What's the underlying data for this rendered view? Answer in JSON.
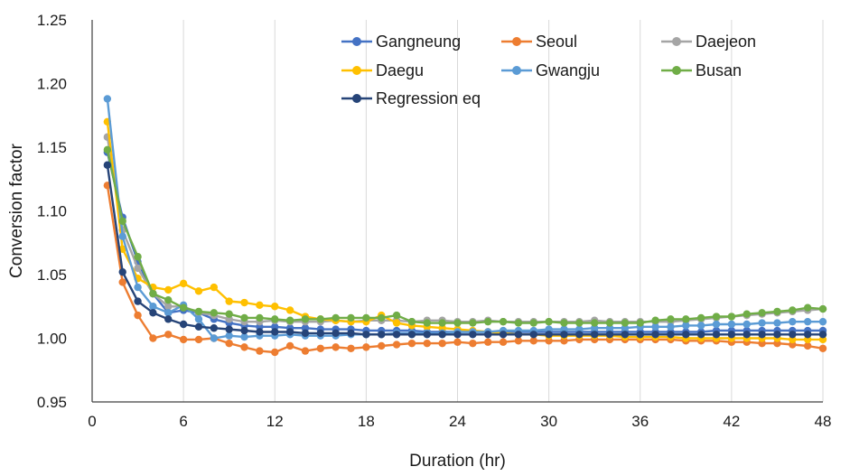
{
  "chart_data": {
    "type": "line",
    "xlabel": "Duration (hr)",
    "ylabel": "Conversion factor",
    "xlim": [
      0,
      48
    ],
    "ylim": [
      0.95,
      1.25
    ],
    "xticks": [
      "0",
      "6",
      "12",
      "18",
      "24",
      "30",
      "36",
      "42",
      "48"
    ],
    "yticks": [
      "0.95",
      "1.00",
      "1.05",
      "1.10",
      "1.15",
      "1.20",
      "1.25"
    ],
    "grid": "vertical",
    "legend_position": "top-right",
    "x": [
      1,
      2,
      3,
      4,
      5,
      6,
      7,
      8,
      9,
      10,
      11,
      12,
      13,
      14,
      15,
      16,
      17,
      18,
      19,
      20,
      21,
      22,
      23,
      24,
      25,
      26,
      27,
      28,
      29,
      30,
      31,
      32,
      33,
      34,
      35,
      36,
      37,
      38,
      39,
      40,
      41,
      42,
      43,
      44,
      45,
      46,
      47,
      48
    ],
    "series": [
      {
        "name": "Gangneung",
        "color": "#4472c4",
        "values": [
          1.146,
          1.095,
          1.06,
          1.035,
          1.02,
          1.022,
          1.02,
          1.015,
          1.012,
          1.01,
          1.009,
          1.009,
          1.008,
          1.008,
          1.007,
          1.007,
          1.007,
          1.006,
          1.006,
          1.006,
          1.006,
          1.005,
          1.005,
          1.005,
          1.005,
          1.005,
          1.005,
          1.005,
          1.005,
          1.005,
          1.005,
          1.005,
          1.005,
          1.005,
          1.005,
          1.005,
          1.005,
          1.005,
          1.005,
          1.005,
          1.006,
          1.006,
          1.006,
          1.006,
          1.006,
          1.006,
          1.006,
          1.006
        ]
      },
      {
        "name": "Seoul",
        "color": "#ed7d31",
        "values": [
          1.12,
          1.044,
          1.018,
          1.0,
          1.003,
          0.999,
          0.999,
          1.0,
          0.996,
          0.993,
          0.99,
          0.989,
          0.994,
          0.99,
          0.992,
          0.993,
          0.992,
          0.993,
          0.994,
          0.995,
          0.996,
          0.996,
          0.996,
          0.997,
          0.996,
          0.997,
          0.997,
          0.998,
          0.998,
          0.998,
          0.998,
          0.999,
          0.999,
          0.999,
          0.999,
          0.999,
          0.999,
          0.999,
          0.998,
          0.998,
          0.998,
          0.997,
          0.997,
          0.996,
          0.996,
          0.995,
          0.994,
          0.992
        ]
      },
      {
        "name": "Daejeon",
        "color": "#a5a5a5",
        "values": [
          1.158,
          1.085,
          1.055,
          1.035,
          1.025,
          1.025,
          1.02,
          1.018,
          1.015,
          1.013,
          1.013,
          1.014,
          1.013,
          1.013,
          1.013,
          1.014,
          1.013,
          1.014,
          1.014,
          1.014,
          1.013,
          1.014,
          1.014,
          1.013,
          1.013,
          1.014,
          1.013,
          1.013,
          1.013,
          1.013,
          1.013,
          1.013,
          1.014,
          1.013,
          1.013,
          1.013,
          1.013,
          1.013,
          1.014,
          1.015,
          1.016,
          1.017,
          1.018,
          1.019,
          1.02,
          1.021,
          1.022,
          1.023
        ]
      },
      {
        "name": "Daegu",
        "color": "#ffc000",
        "values": [
          1.17,
          1.07,
          1.047,
          1.04,
          1.038,
          1.043,
          1.037,
          1.04,
          1.029,
          1.028,
          1.026,
          1.025,
          1.022,
          1.017,
          1.015,
          1.014,
          1.013,
          1.013,
          1.018,
          1.012,
          1.01,
          1.009,
          1.008,
          1.007,
          1.006,
          1.005,
          1.004,
          1.003,
          1.003,
          1.002,
          1.002,
          1.002,
          1.002,
          1.002,
          1.001,
          1.001,
          1.001,
          1.001,
          1.0,
          1.0,
          1.0,
          1.0,
          1.0,
          1.0,
          1.0,
          0.999,
          0.999,
          0.999
        ]
      },
      {
        "name": "Gwangju",
        "color": "#5b9bd5",
        "values": [
          1.188,
          1.08,
          1.04,
          1.025,
          1.02,
          1.026,
          1.015,
          1.0,
          1.002,
          1.001,
          1.002,
          1.002,
          1.003,
          1.002,
          1.002,
          1.002,
          1.003,
          1.003,
          1.003,
          1.004,
          1.004,
          1.004,
          1.004,
          1.005,
          1.005,
          1.005,
          1.006,
          1.006,
          1.006,
          1.007,
          1.007,
          1.007,
          1.008,
          1.008,
          1.008,
          1.009,
          1.009,
          1.009,
          1.01,
          1.01,
          1.011,
          1.011,
          1.011,
          1.012,
          1.012,
          1.013,
          1.013,
          1.013
        ]
      },
      {
        "name": "Busan",
        "color": "#70ad47",
        "values": [
          1.148,
          1.092,
          1.064,
          1.035,
          1.03,
          1.024,
          1.021,
          1.02,
          1.019,
          1.016,
          1.016,
          1.015,
          1.014,
          1.015,
          1.015,
          1.016,
          1.016,
          1.016,
          1.016,
          1.018,
          1.013,
          1.012,
          1.012,
          1.012,
          1.012,
          1.013,
          1.013,
          1.012,
          1.012,
          1.013,
          1.012,
          1.012,
          1.012,
          1.012,
          1.012,
          1.012,
          1.014,
          1.015,
          1.015,
          1.016,
          1.017,
          1.017,
          1.019,
          1.02,
          1.021,
          1.022,
          1.024,
          1.023
        ]
      },
      {
        "name": "Regression eq",
        "color": "#264478",
        "values": [
          1.136,
          1.052,
          1.029,
          1.02,
          1.015,
          1.011,
          1.009,
          1.008,
          1.007,
          1.006,
          1.005,
          1.005,
          1.005,
          1.004,
          1.004,
          1.004,
          1.004,
          1.003,
          1.003,
          1.003,
          1.003,
          1.003,
          1.003,
          1.003,
          1.003,
          1.003,
          1.003,
          1.003,
          1.003,
          1.003,
          1.003,
          1.003,
          1.003,
          1.003,
          1.003,
          1.003,
          1.003,
          1.003,
          1.003,
          1.003,
          1.003,
          1.003,
          1.003,
          1.003,
          1.003,
          1.003,
          1.003,
          1.003
        ]
      }
    ]
  }
}
